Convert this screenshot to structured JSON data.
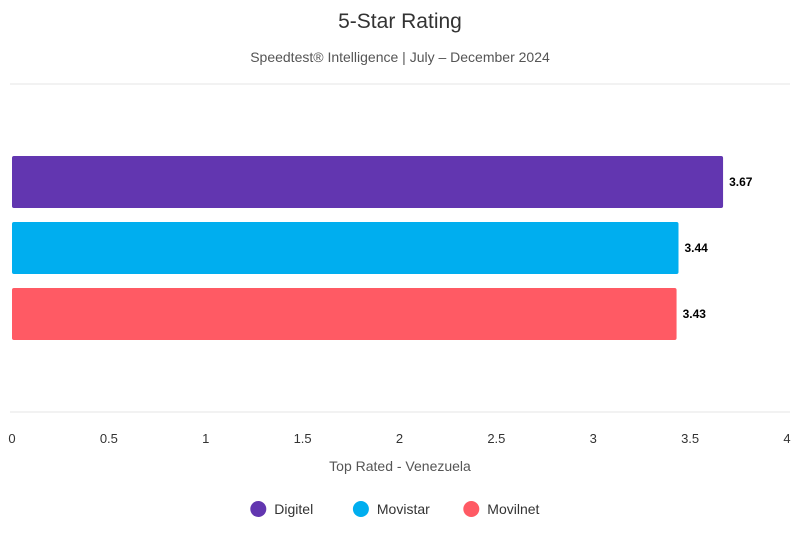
{
  "chart_data": {
    "type": "bar",
    "orientation": "horizontal",
    "title": "5-Star Rating",
    "subtitle": "Speedtest® Intelligence | July – December 2024",
    "xlabel": "Top Rated - Venezuela",
    "xlim": [
      0,
      4
    ],
    "xticks": [
      "0",
      "0.5",
      "1",
      "1.5",
      "2",
      "2.5",
      "3",
      "3.5",
      "4"
    ],
    "grid": false,
    "legend_position": "bottom",
    "series": [
      {
        "name": "Digitel",
        "value": 3.67,
        "label": "3.67",
        "color": "#6236b0"
      },
      {
        "name": "Movistar",
        "value": 3.44,
        "label": "3.44",
        "color": "#00aeef"
      },
      {
        "name": "Movilnet",
        "value": 3.43,
        "label": "3.43",
        "color": "#ff5a64"
      }
    ]
  }
}
